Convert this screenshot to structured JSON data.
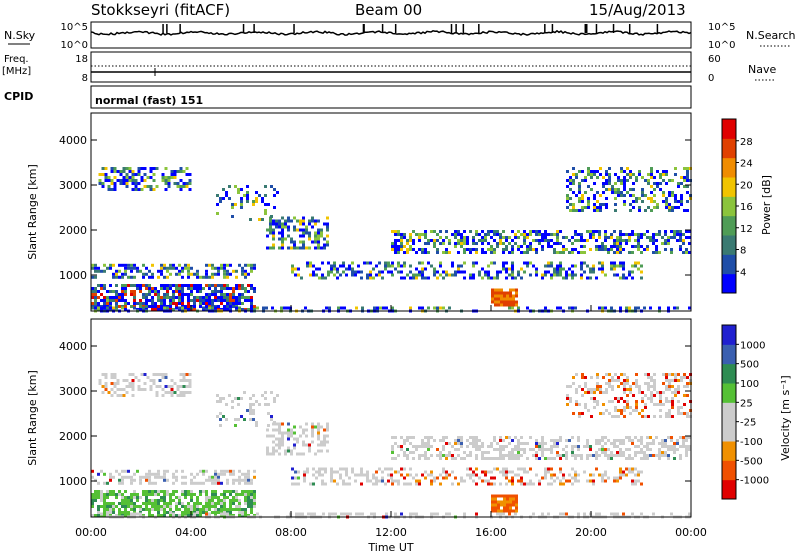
{
  "header": {
    "station": "Stokkseyri (fitACF)",
    "beam": "Beam 00",
    "date": "15/Aug/2013"
  },
  "noise_panel": {
    "left_label": "N.Sky",
    "right_label": "N.Search",
    "ticks_left": [
      "10^5",
      "10^0"
    ],
    "ticks_right": [
      "10^5",
      "10^0"
    ]
  },
  "freq_panel": {
    "label_top": "Freq.",
    "label_unit": "[MHz]",
    "ticks_left": [
      "18",
      "8"
    ],
    "ticks_right": [
      "60",
      "0"
    ],
    "right_label": "Nave"
  },
  "cpid_panel": {
    "label": "CPID",
    "value": "normal (fast) 151"
  },
  "colors": {
    "power": [
      "#0000ff",
      "#1f4ea8",
      "#3a7a72",
      "#4f9c56",
      "#8bc43c",
      "#f1c400",
      "#f08c00",
      "#e04000",
      "#e00000"
    ],
    "velocity": [
      "#e00000",
      "#f05000",
      "#f09000",
      "#cccccc",
      "#cccccc",
      "#55c035",
      "#2e8c52",
      "#3a5fb0",
      "#2020d0"
    ]
  },
  "chart_data": [
    {
      "type": "heatmap",
      "quantity": "power",
      "xlabel": "",
      "ylabel": "Slant Range [km]",
      "ylim": [
        200,
        4600
      ],
      "yticks": [
        "1000",
        "2000",
        "3000",
        "4000"
      ],
      "xlim_hours": [
        0,
        24
      ],
      "colorbar": {
        "label": "Power [dB]",
        "range": [
          0,
          32
        ],
        "ticks": [
          "4",
          "8",
          "12",
          "16",
          "20",
          "24",
          "28"
        ]
      }
    },
    {
      "type": "heatmap",
      "quantity": "velocity",
      "xlabel": "Time UT",
      "ylabel": "Slant Range [km]",
      "ylim": [
        200,
        4600
      ],
      "yticks": [
        "1000",
        "2000",
        "3000",
        "4000"
      ],
      "xticks": [
        "00:00",
        "04:00",
        "08:00",
        "12:00",
        "16:00",
        "20:00",
        "00:00"
      ],
      "xlim_hours": [
        0,
        24
      ],
      "colorbar": {
        "label": "Velocity [m s⁻¹]",
        "ticks": [
          "1000",
          "500",
          "100",
          "25",
          "-25",
          "-100",
          "-500",
          "-1000"
        ]
      }
    }
  ]
}
